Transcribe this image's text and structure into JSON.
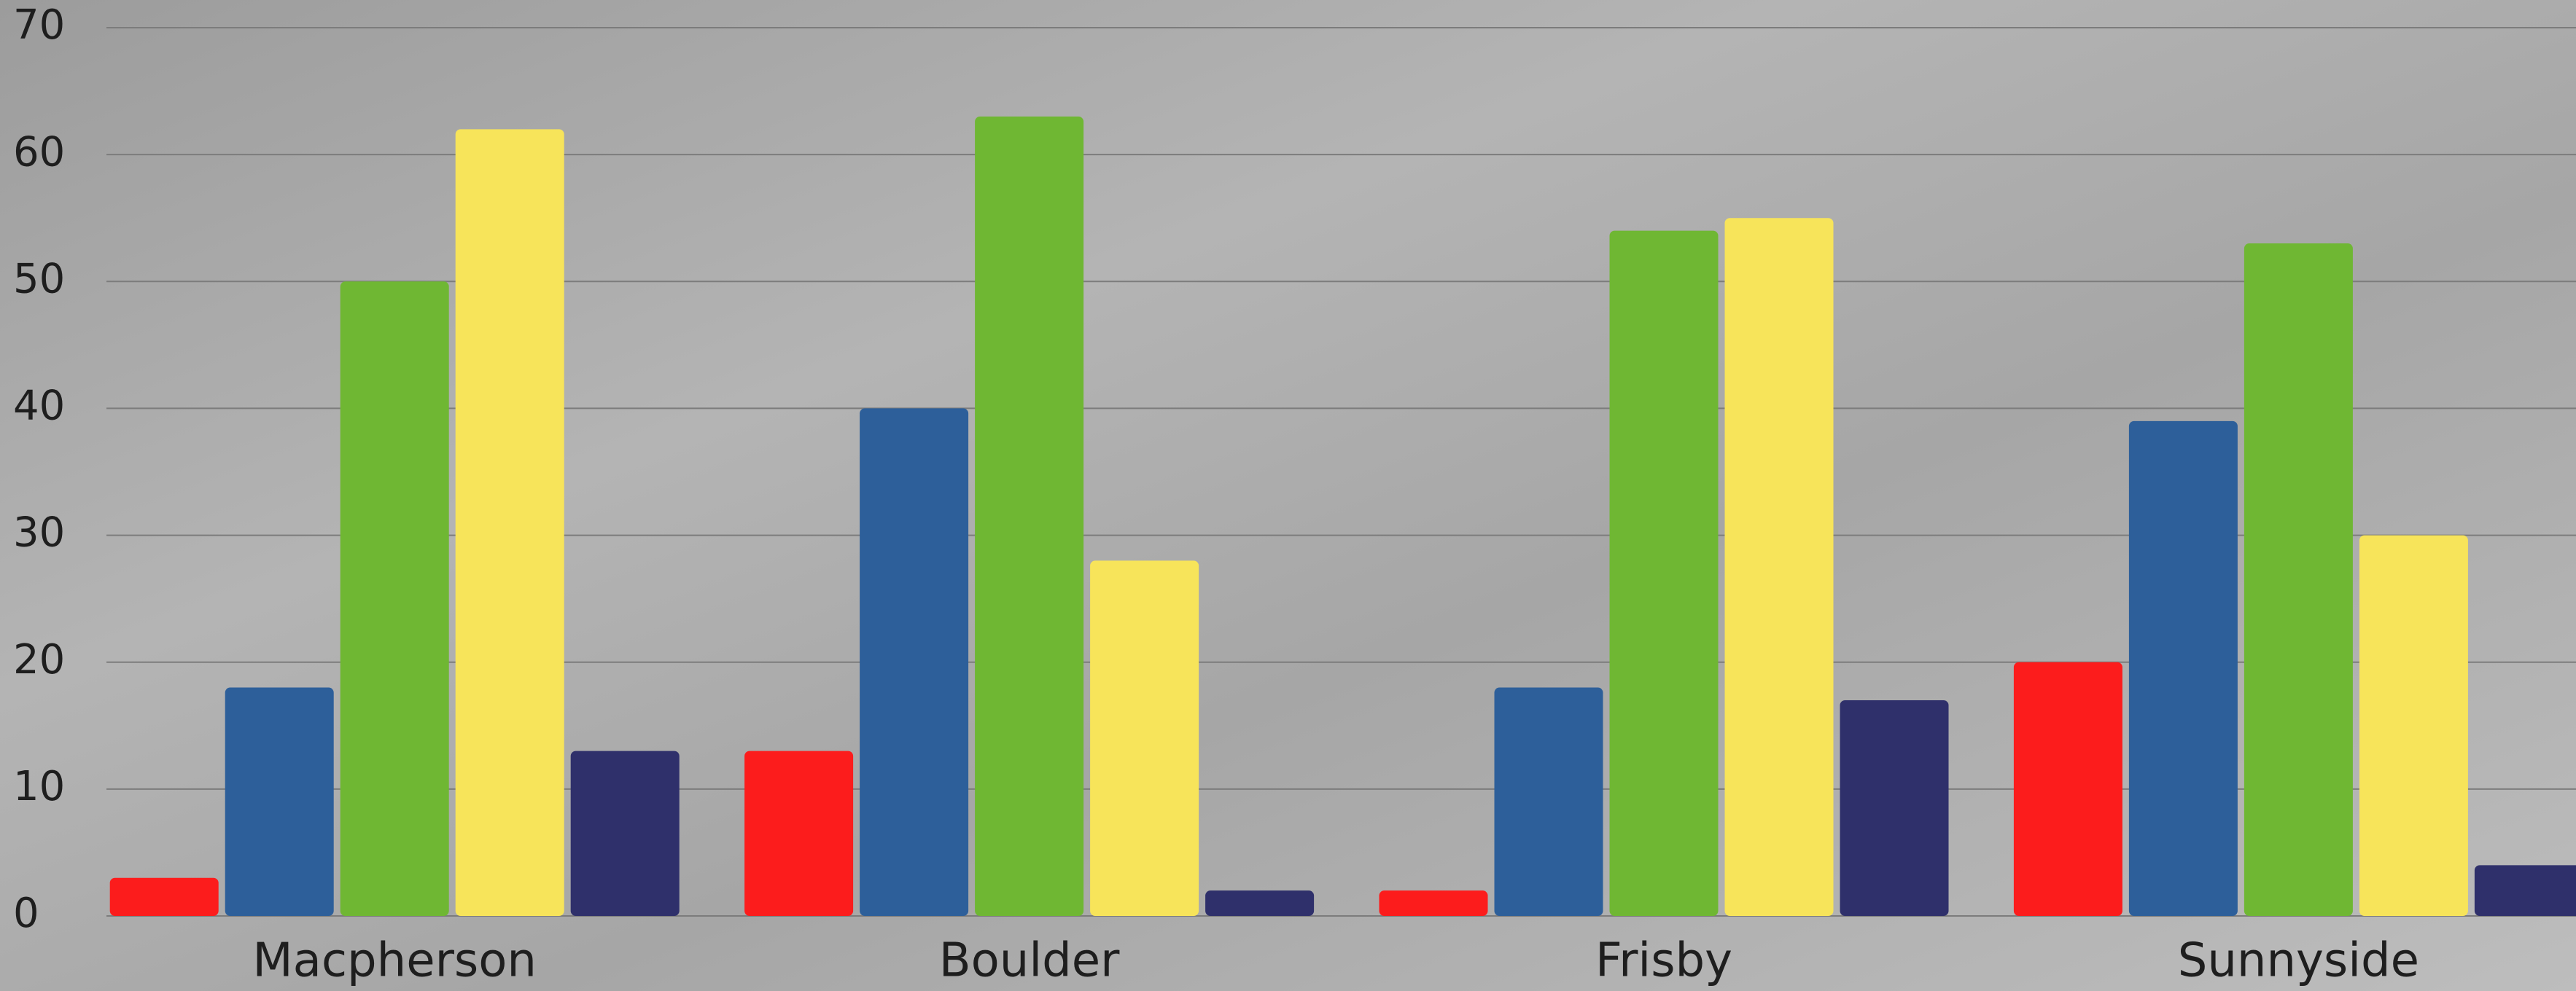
{
  "chart_data": {
    "type": "bar",
    "categories": [
      "Macpherson",
      "Boulder",
      "Frisby",
      "Sunnyside"
    ],
    "series": [
      {
        "color": "#fc1c1c",
        "values": [
          3,
          13,
          2,
          20
        ]
      },
      {
        "color": "#2d5f9a",
        "values": [
          18,
          40,
          18,
          39
        ]
      },
      {
        "color": "#6fb733",
        "values": [
          50,
          63,
          54,
          53
        ]
      },
      {
        "color": "#f7e45a",
        "values": [
          62,
          28,
          55,
          30
        ]
      },
      {
        "color": "#2f306b",
        "values": [
          13,
          2,
          17,
          4
        ]
      }
    ],
    "ylim": [
      0,
      70
    ],
    "yticks": [
      0,
      10,
      20,
      30,
      40,
      50,
      60,
      70
    ],
    "grid": true
  }
}
